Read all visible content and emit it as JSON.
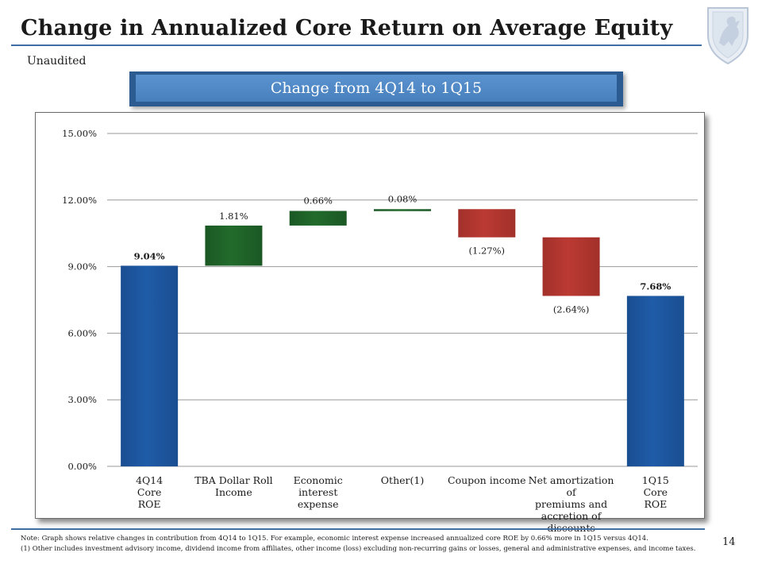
{
  "header": {
    "title": "Change in Annualized Core Return on Average Equity",
    "subtitle": "Unaudited",
    "banner": "Change from 4Q14 to 1Q15"
  },
  "footer": {
    "note": "Note:  Graph shows relative changes in contribution from 4Q14 to 1Q15.  For example, economic interest expense increased annualized core ROE by 0.66% more in 1Q15 versus 4Q14.",
    "footnote": "(1)  Other includes investment advisory income, dividend income from affiliates, other income (loss) excluding non-recurring gains or losses, general and administrative expenses, and income taxes.",
    "page_number": "14"
  },
  "logo_icon": "griffin-shield-icon",
  "colors": {
    "total_bar": "#1f5ca8",
    "increase_bar": "#226b2c",
    "decrease_bar": "#bb3a33",
    "accent": "#3f6ea6"
  },
  "chart_data": {
    "type": "waterfall",
    "title": "Change from 4Q14 to 1Q15",
    "ylim": [
      0,
      15
    ],
    "yticks": [
      0,
      3,
      6,
      9,
      12,
      15
    ],
    "ytick_labels": [
      "0.00%",
      "3.00%",
      "6.00%",
      "9.00%",
      "12.00%",
      "15.00%"
    ],
    "categories": [
      {
        "label": "4Q14\nCore\nROE",
        "kind": "total",
        "value": 9.04,
        "value_label": "9.04%"
      },
      {
        "label": "TBA Dollar Roll\nIncome",
        "kind": "increase",
        "value": 1.81,
        "value_label": "1.81%"
      },
      {
        "label": "Economic interest\nexpense",
        "kind": "increase",
        "value": 0.66,
        "value_label": "0.66%"
      },
      {
        "label": "Other(1)",
        "kind": "increase",
        "value": 0.08,
        "value_label": "0.08%"
      },
      {
        "label": "Coupon income",
        "kind": "decrease",
        "value": -1.27,
        "value_label": "(1.27%)"
      },
      {
        "label": "Net amortization of\npremiums and\naccretion of\ndiscounts",
        "kind": "decrease",
        "value": -2.64,
        "value_label": "(2.64%)"
      },
      {
        "label": "1Q15\nCore\nROE",
        "kind": "total",
        "value": 7.68,
        "value_label": "7.68%"
      }
    ]
  }
}
